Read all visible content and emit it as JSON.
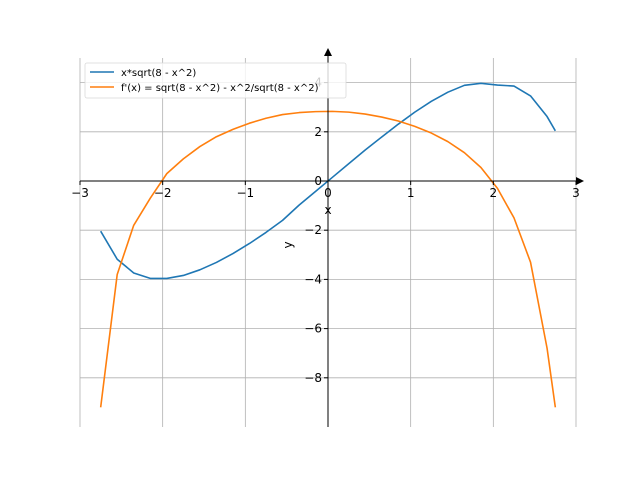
{
  "chart_data": {
    "type": "line",
    "title": "",
    "xlabel": "x",
    "ylabel": "y",
    "xlim": [
      -3,
      3
    ],
    "ylim": [
      -10,
      5
    ],
    "xticks": [
      -3,
      -2,
      -1,
      0,
      1,
      2,
      3
    ],
    "xtick_labels": [
      "−3",
      "−2",
      "−1",
      "0",
      "1",
      "2",
      "3"
    ],
    "yticks": [
      -8,
      -6,
      -4,
      -2,
      0,
      2,
      4
    ],
    "ytick_labels": [
      "−8",
      "−6",
      "−4",
      "−2",
      "0",
      "2",
      "4"
    ],
    "grid": true,
    "legend": "top-left",
    "x": [
      -2.75,
      -2.55,
      -2.35,
      -2.15,
      -1.95,
      -1.75,
      -1.55,
      -1.35,
      -1.15,
      -0.95,
      -0.75,
      -0.55,
      -0.35,
      -0.15,
      0.05,
      0.25,
      0.45,
      0.65,
      0.85,
      1.05,
      1.25,
      1.45,
      1.65,
      1.85,
      2.05,
      2.25,
      2.45,
      2.65,
      2.75
    ],
    "series": [
      {
        "name": "x*sqrt(8 - x^2)",
        "color": "#1f77b4",
        "values": [
          -2.04,
          -3.18,
          -3.74,
          -3.96,
          -3.96,
          -3.84,
          -3.61,
          -3.31,
          -2.95,
          -2.54,
          -2.09,
          -1.6,
          -0.98,
          -0.42,
          0.14,
          0.7,
          1.26,
          1.79,
          2.31,
          2.8,
          3.24,
          3.61,
          3.89,
          3.97,
          3.9,
          3.86,
          3.46,
          2.62,
          2.04
        ]
      },
      {
        "name": "f'(x) = sqrt(8 - x^2) - x^2/sqrt(8 - x^2)",
        "color": "#ff7f0e",
        "values": [
          -9.2,
          -3.8,
          -1.8,
          -0.7,
          0.3,
          0.9,
          1.4,
          1.8,
          2.1,
          2.35,
          2.55,
          2.7,
          2.78,
          2.82,
          2.83,
          2.8,
          2.72,
          2.6,
          2.44,
          2.22,
          1.95,
          1.6,
          1.15,
          0.55,
          -0.3,
          -1.5,
          -3.3,
          -6.8,
          -9.2
        ]
      }
    ]
  }
}
